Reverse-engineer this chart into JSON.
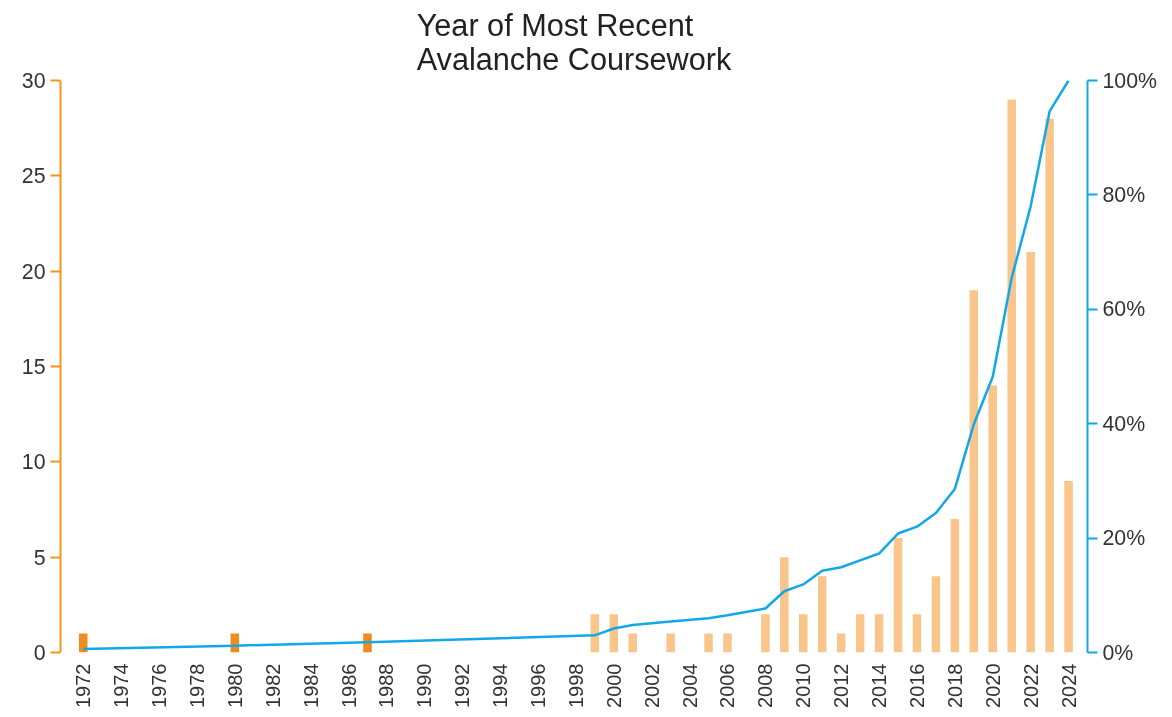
{
  "chart_data": {
    "type": "bar",
    "title": "Year of Most Recent\nAvalanche Coursework",
    "xlim": [
      1970.8,
      2025
    ],
    "xticks": [
      1972,
      1974,
      1976,
      1978,
      1980,
      1982,
      1984,
      1986,
      1988,
      1990,
      1992,
      1994,
      1996,
      1998,
      2000,
      2002,
      2004,
      2006,
      2008,
      2010,
      2012,
      2014,
      2016,
      2018,
      2020,
      2022,
      2024
    ],
    "ylim": [
      0,
      30
    ],
    "yticks": [
      0,
      5,
      10,
      15,
      20,
      25,
      30
    ],
    "y2lim": [
      0,
      100
    ],
    "y2ticks": [
      {
        "value": 0,
        "label": "0%"
      },
      {
        "value": 20,
        "label": "20%"
      },
      {
        "value": 40,
        "label": "40%"
      },
      {
        "value": 60,
        "label": "60%"
      },
      {
        "value": 80,
        "label": "80%"
      },
      {
        "value": 100,
        "label": "100%"
      }
    ],
    "grid": false,
    "series": [
      {
        "x": [
          1972,
          1980,
          1987,
          1999,
          2000,
          2001,
          2003,
          2005,
          2006,
          2008,
          2009,
          2010,
          2011,
          2012,
          2013,
          2014,
          2015,
          2016,
          2017,
          2018,
          2019,
          2020,
          2021,
          2022,
          2023,
          2024
        ],
        "values": [
          1,
          1,
          1,
          2,
          2,
          1,
          1,
          1,
          1,
          2,
          5,
          2,
          4,
          1,
          2,
          2,
          6,
          2,
          4,
          7,
          19,
          14,
          29,
          21,
          28,
          9
        ],
        "colors": [
          "#f08c1e",
          "#f08c1e",
          "#f08c1e",
          "#fac58a",
          "#fac58a",
          "#fac58a",
          "#fac58a",
          "#fac58a",
          "#fac58a",
          "#fac58a",
          "#fac58a",
          "#fac58a",
          "#fac58a",
          "#fac58a",
          "#fac58a",
          "#fac58a",
          "#fac58a",
          "#fac58a",
          "#fac58a",
          "#fac58a",
          "#fac58a",
          "#fac58a",
          "#fac58a",
          "#fac58a",
          "#fac58a",
          "#fac58a"
        ]
      },
      {
        "type": "line",
        "axis": "y2",
        "color": "#12a8e8",
        "x": [
          1972,
          1980,
          1987,
          1999,
          2000,
          2001,
          2003,
          2005,
          2006,
          2008,
          2009,
          2010,
          2011,
          2012,
          2013,
          2014,
          2015,
          2016,
          2017,
          2018,
          2019,
          2020,
          2021,
          2022,
          2023,
          2024
        ],
        "values": [
          0.6,
          1.2,
          1.8,
          3.0,
          4.2,
          4.8,
          5.4,
          6.0,
          6.5,
          7.7,
          10.7,
          11.9,
          14.3,
          14.9,
          16.1,
          17.3,
          20.8,
          22.0,
          24.4,
          28.6,
          39.9,
          48.2,
          65.5,
          78.0,
          94.6,
          100
        ]
      }
    ]
  }
}
